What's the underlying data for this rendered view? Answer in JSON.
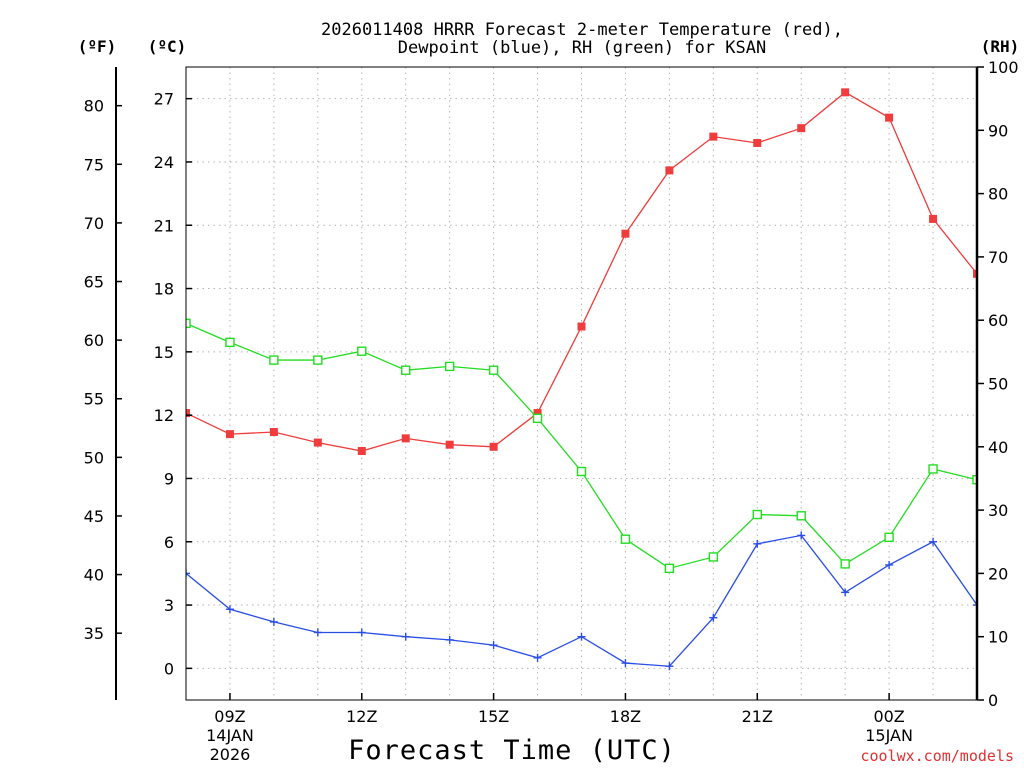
{
  "chart_data": {
    "type": "line",
    "title_line1": "2026011408 HRRR Forecast 2-meter Temperature (red),",
    "title_line2": "Dewpoint (blue), RH (green) for KSAN",
    "xlabel": "Forecast Time (UTC)",
    "axis_unit_f": "(ºF)",
    "axis_unit_c": "(ºC)",
    "axis_unit_rh": "(RH)",
    "credit": "coolwx.com/models",
    "x": [
      8,
      9,
      10,
      11,
      12,
      13,
      14,
      15,
      16,
      17,
      18,
      19,
      20,
      21,
      22,
      23,
      24,
      25,
      26
    ],
    "xlim": [
      8,
      26
    ],
    "c_ylim": [
      -1.5,
      28.5
    ],
    "rh_ylim": [
      0,
      100
    ],
    "x_ticks": [
      {
        "x": 9,
        "label": "09Z",
        "sub1": "14JAN",
        "sub2": "2026"
      },
      {
        "x": 12,
        "label": "12Z",
        "sub1": "",
        "sub2": ""
      },
      {
        "x": 15,
        "label": "15Z",
        "sub1": "",
        "sub2": ""
      },
      {
        "x": 18,
        "label": "18Z",
        "sub1": "",
        "sub2": ""
      },
      {
        "x": 21,
        "label": "21Z",
        "sub1": "",
        "sub2": ""
      },
      {
        "x": 24,
        "label": "00Z",
        "sub1": "15JAN",
        "sub2": ""
      }
    ],
    "c_ticks": [
      "0",
      "3",
      "6",
      "9",
      "12",
      "15",
      "18",
      "21",
      "24",
      "27"
    ],
    "f_ticks": [
      "35",
      "40",
      "45",
      "50",
      "55",
      "60",
      "65",
      "70",
      "75",
      "80"
    ],
    "rh_ticks": [
      "0",
      "10",
      "20",
      "30",
      "40",
      "50",
      "60",
      "70",
      "80",
      "90",
      "100"
    ],
    "series": [
      {
        "name": "Temperature",
        "color": "#f03c3c",
        "marker": "filled-square",
        "axis": "c",
        "values": [
          12.1,
          11.1,
          11.2,
          10.7,
          10.3,
          10.9,
          10.6,
          10.5,
          12.1,
          16.2,
          20.6,
          23.6,
          25.2,
          24.9,
          25.6,
          27.3,
          26.1,
          21.3,
          18.7
        ]
      },
      {
        "name": "Dewpoint",
        "color": "#2a4de6",
        "marker": "plus",
        "axis": "c",
        "values": [
          4.5,
          2.8,
          2.2,
          1.7,
          1.7,
          1.5,
          1.35,
          1.1,
          0.5,
          1.5,
          0.25,
          0.1,
          2.4,
          5.9,
          6.3,
          3.6,
          4.9,
          6.0,
          3.0
        ]
      },
      {
        "name": "RH",
        "color": "#22dd22",
        "marker": "open-square",
        "axis": "rh",
        "values": [
          59.5,
          56.5,
          53.7,
          53.7,
          55.1,
          52.1,
          52.7,
          52.1,
          44.5,
          36.1,
          25.4,
          20.8,
          22.6,
          29.3,
          29.1,
          21.5,
          25.7,
          36.5,
          34.8
        ]
      }
    ]
  }
}
